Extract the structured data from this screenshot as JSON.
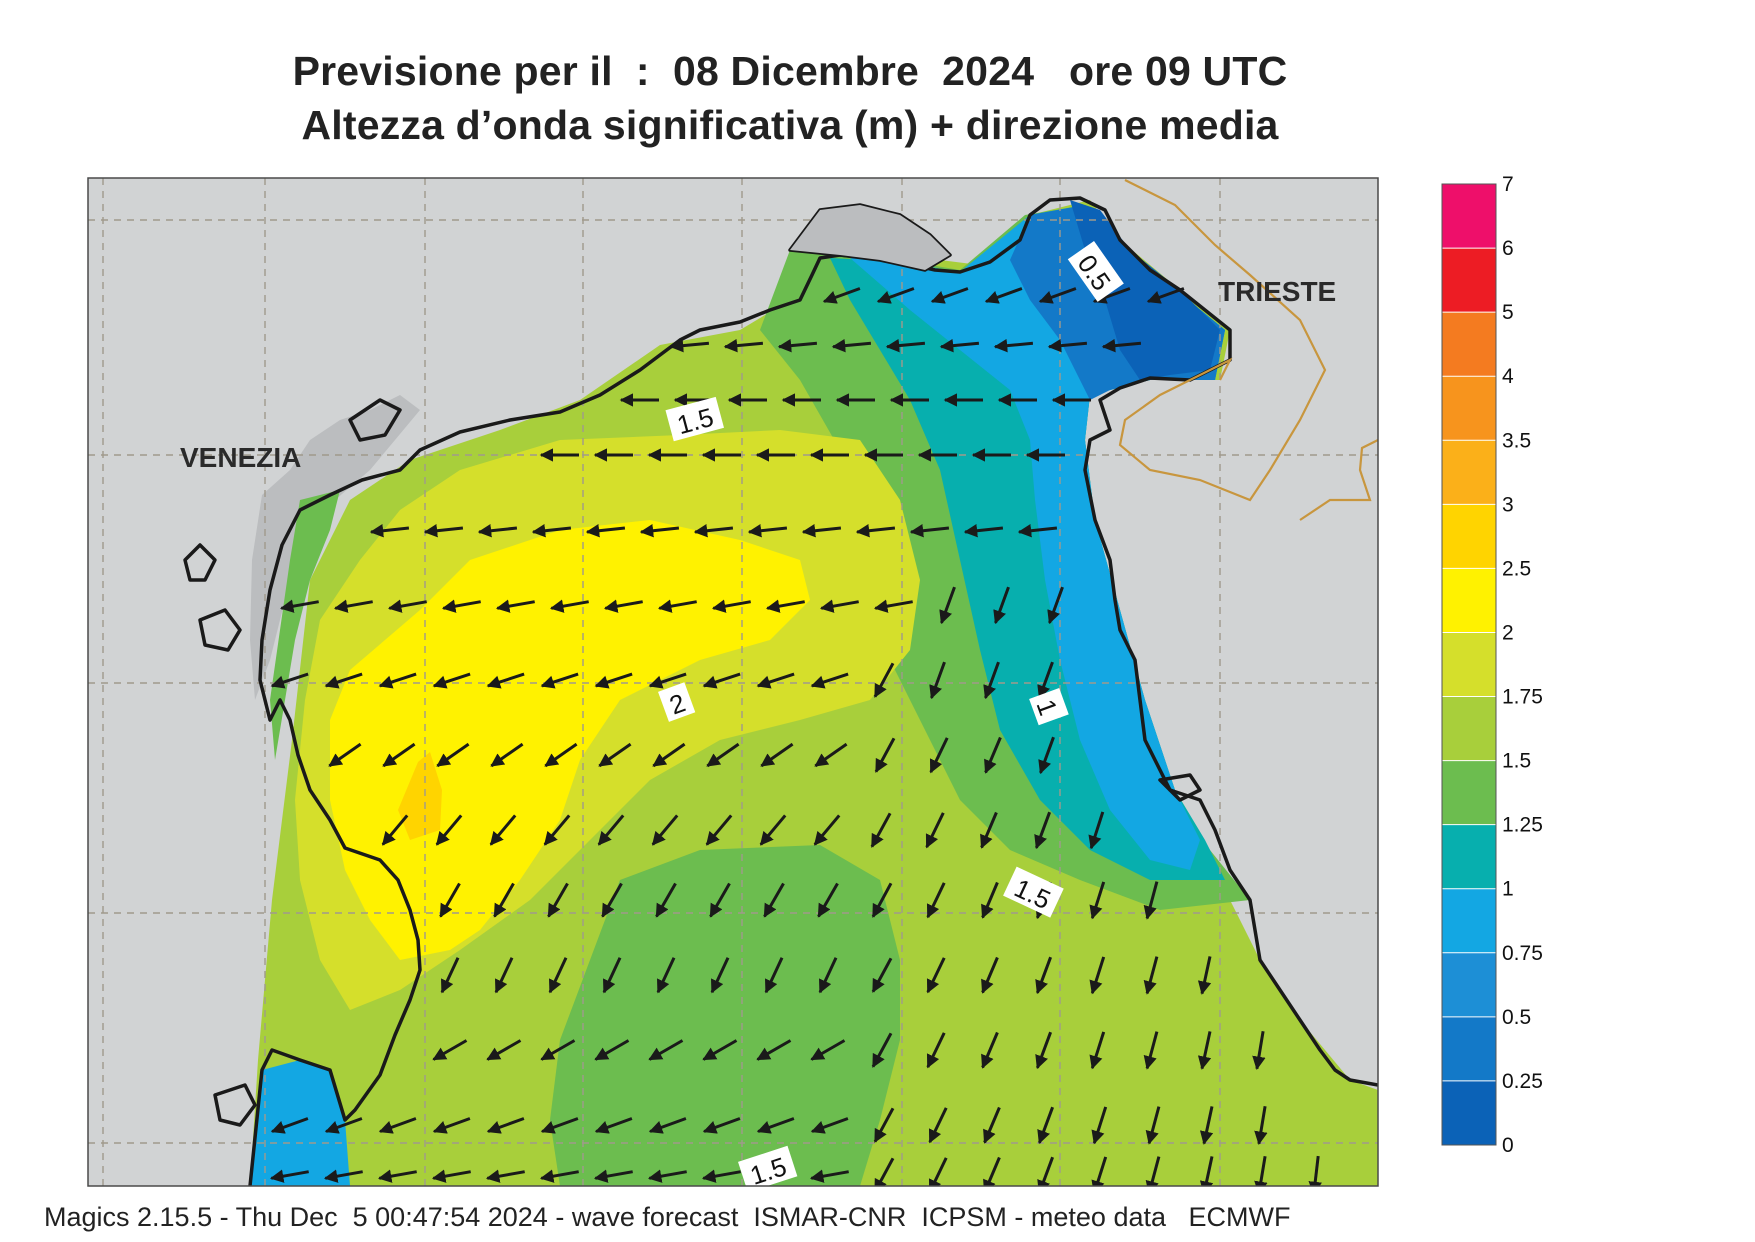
{
  "title": {
    "line1": "Previsione per il  :  08 Dicembre  2024   ore 09 UTC",
    "line2": "Altezza d’onda significativa (m) + direzione media"
  },
  "places": [
    {
      "name": "VENEZIA"
    },
    {
      "name": "TRIESTE"
    }
  ],
  "contour_labels": [
    "1.5",
    "2",
    "1",
    "1.5",
    "0.5",
    "1.5"
  ],
  "legend": {
    "ticks": [
      "0",
      "0.25",
      "0.5",
      "0.75",
      "1",
      "1.25",
      "1.5",
      "1.75",
      "2",
      "2.5",
      "3",
      "3.5",
      "4",
      "5",
      "6",
      "7"
    ],
    "colors": [
      "#0b62b7",
      "#1379c8",
      "#1d8fd6",
      "#13a7e3",
      "#07afae",
      "#6cbd4f",
      "#a8cf3b",
      "#d5df2b",
      "#fff200",
      "#ffd400",
      "#fbb019",
      "#f7941d",
      "#f47b20",
      "#ed1c24",
      "#ee0f6a"
    ]
  },
  "colors": {
    "land": "#d1d3d4",
    "lagoon": "#bbbdbf",
    "coast": "#1a1a1a",
    "border": "#c8963e",
    "grid": "#a09a8c"
  },
  "footer": "Magics 2.15.5 - Thu Dec  5 00:47:54 2024 - wave forecast  ISMAR-CNR  ICPSM - meteo data   ECMWF"
}
